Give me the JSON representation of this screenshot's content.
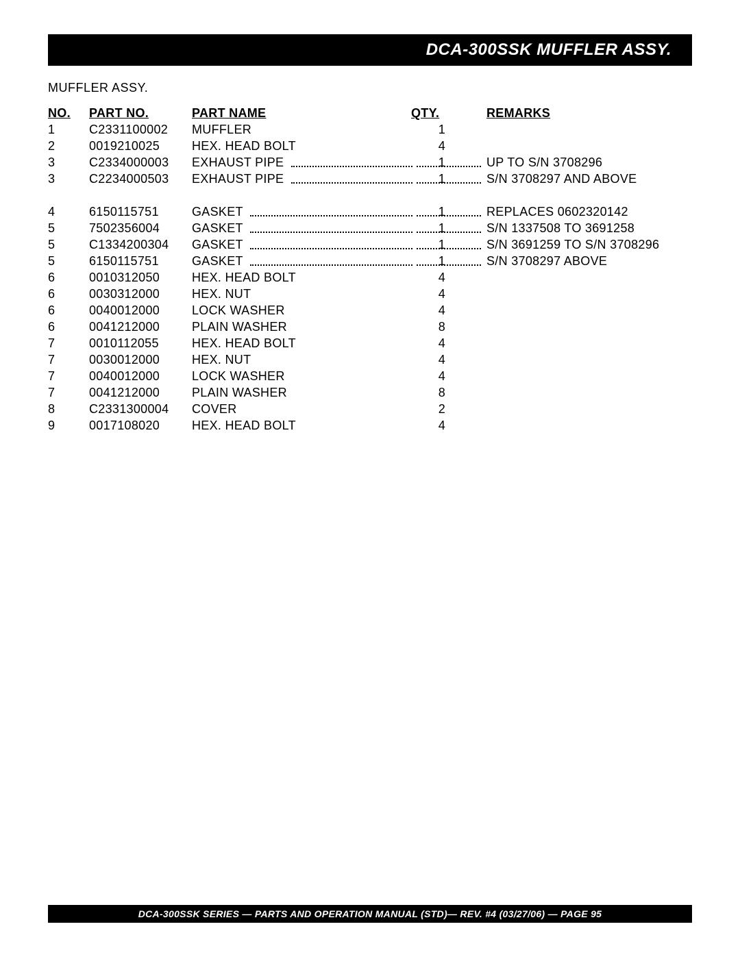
{
  "header": {
    "title": "DCA-300SSK  MUFFLER ASSY."
  },
  "subtitle": "MUFFLER ASSY.",
  "columns": {
    "no": "NO.",
    "partno": "PART NO.",
    "partname": "PART NAME",
    "qty": "QTY.",
    "remarks": "REMARKS"
  },
  "rows": [
    {
      "no": "1",
      "pn": "C2331100002",
      "name": "MUFFLER",
      "qty": "1",
      "rem": "",
      "dotted": false,
      "nameLen": 90
    },
    {
      "no": "2",
      "pn": "0019210025",
      "name": "HEX. HEAD BOLT",
      "qty": "4",
      "rem": "",
      "dotted": false,
      "nameLen": 160
    },
    {
      "no": "3",
      "pn": "C2334000003",
      "name": "EXHAUST PIPE",
      "qty": "1",
      "rem": "UP TO S/N 3708296",
      "dotted": true,
      "nameLen": 145
    },
    {
      "no": "3",
      "pn": "C2234000503",
      "name": "EXHAUST PIPE",
      "qty": "1",
      "rem": "S/N 3708297 AND ABOVE",
      "dotted": true,
      "nameLen": 145
    },
    {
      "spacer": true
    },
    {
      "no": "4",
      "pn": "6150115751",
      "name": "GASKET",
      "qty": "1",
      "rem": "REPLACES 0602320142",
      "dotted": true,
      "nameLen": 85
    },
    {
      "no": "5",
      "pn": "7502356004",
      "name": "GASKET",
      "qty": "1",
      "rem": "S/N 1337508 TO 3691258",
      "dotted": true,
      "nameLen": 85
    },
    {
      "no": "5",
      "pn": "C1334200304",
      "name": "GASKET",
      "qty": "1",
      "rem": "S/N 3691259 TO S/N 3708296",
      "dotted": true,
      "nameLen": 85
    },
    {
      "no": "5",
      "pn": "6150115751",
      "name": "GASKET",
      "qty": "1",
      "rem": "S/N 3708297 ABOVE",
      "dotted": true,
      "nameLen": 85
    },
    {
      "no": "6",
      "pn": "0010312050",
      "name": "HEX. HEAD BOLT",
      "qty": "4",
      "rem": "",
      "dotted": false,
      "nameLen": 160
    },
    {
      "no": "6",
      "pn": "0030312000",
      "name": "HEX. NUT",
      "qty": "4",
      "rem": "",
      "dotted": false,
      "nameLen": 95
    },
    {
      "no": "6",
      "pn": "0040012000",
      "name": "LOCK WASHER",
      "qty": "4",
      "rem": "",
      "dotted": false,
      "nameLen": 140
    },
    {
      "no": "6",
      "pn": "0041212000",
      "name": "PLAIN WASHER",
      "qty": "8",
      "rem": "",
      "dotted": false,
      "nameLen": 145
    },
    {
      "no": "7",
      "pn": "0010112055",
      "name": "HEX. HEAD BOLT",
      "qty": "4",
      "rem": "",
      "dotted": false,
      "nameLen": 160
    },
    {
      "no": "7",
      "pn": "0030012000",
      "name": "HEX. NUT",
      "qty": "4",
      "rem": "",
      "dotted": false,
      "nameLen": 95
    },
    {
      "no": "7",
      "pn": "0040012000",
      "name": "LOCK WASHER",
      "qty": "4",
      "rem": "",
      "dotted": false,
      "nameLen": 140
    },
    {
      "no": "7",
      "pn": "0041212000",
      "name": "PLAIN WASHER",
      "qty": "8",
      "rem": "",
      "dotted": false,
      "nameLen": 145
    },
    {
      "no": "8",
      "pn": "C2331300004",
      "name": "COVER",
      "qty": "2",
      "rem": "",
      "dotted": false,
      "nameLen": 75
    },
    {
      "no": "9",
      "pn": "0017108020",
      "name": "HEX. HEAD BOLT",
      "qty": "4",
      "rem": "",
      "dotted": false,
      "nameLen": 160
    }
  ],
  "footer": "DCA-300SSK SERIES — PARTS  AND OPERATION MANUAL (STD)— REV. #4 (03/27/06) — PAGE 95"
}
